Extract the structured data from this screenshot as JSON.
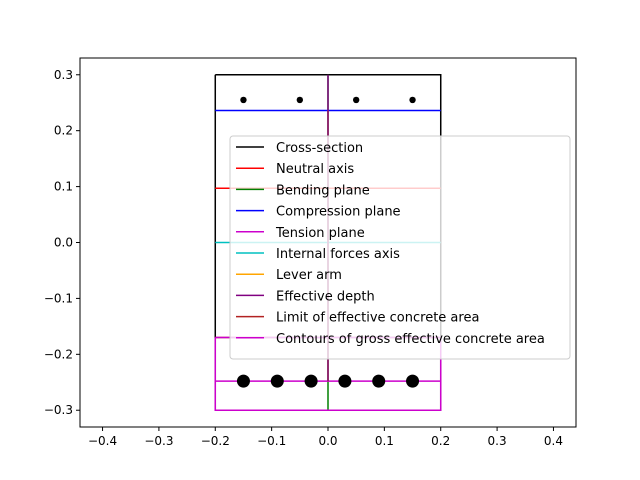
{
  "chart_data": {
    "type": "line",
    "title": "",
    "xlabel": "",
    "ylabel": "",
    "xlim": [
      -0.44,
      0.44
    ],
    "ylim": [
      -0.33,
      0.33
    ],
    "x_ticks": [
      -0.4,
      -0.3,
      -0.2,
      -0.1,
      0.0,
      0.1,
      0.2,
      0.3,
      0.4
    ],
    "y_ticks": [
      -0.3,
      -0.2,
      -0.1,
      0.0,
      0.1,
      0.2,
      0.3
    ],
    "x_tick_labels": [
      "−0.4",
      "−0.3",
      "−0.2",
      "−0.1",
      "0.0",
      "0.1",
      "0.2",
      "0.3",
      "0.4"
    ],
    "y_tick_labels": [
      "−0.3",
      "−0.2",
      "−0.1",
      "0.0",
      "0.1",
      "0.2",
      "0.3"
    ],
    "grid": false,
    "legend_position": "right",
    "series": [
      {
        "name": "Cross-section",
        "color": "#000000",
        "x": [
          -0.2,
          0.2,
          0.2,
          -0.2,
          -0.2
        ],
        "y": [
          0.3,
          0.3,
          -0.3,
          -0.3,
          0.3
        ]
      },
      {
        "name": "Neutral axis",
        "color": "#ff0000",
        "x": [
          -0.2,
          0.2
        ],
        "y": [
          0.097,
          0.097
        ]
      },
      {
        "name": "Bending plane",
        "color": "#008000",
        "x": [
          0.0,
          0.0
        ],
        "y": [
          0.3,
          -0.3
        ]
      },
      {
        "name": "Compression plane",
        "color": "#0000ff",
        "x": [
          -0.2,
          0.2
        ],
        "y": [
          0.236,
          0.236
        ]
      },
      {
        "name": "Tension plane",
        "color": "#cc00cc",
        "x": [
          -0.2,
          0.2
        ],
        "y": [
          -0.248,
          -0.248
        ]
      },
      {
        "name": "Internal forces axis",
        "color": "#00c0c0",
        "x": [
          -0.2,
          0.2
        ],
        "y": [
          0.0,
          0.0
        ]
      },
      {
        "name": "Lever arm",
        "color": "#ffa500",
        "x": [
          0.0,
          0.0
        ],
        "y": [
          0.236,
          -0.248
        ]
      },
      {
        "name": "Effective depth",
        "color": "#800080",
        "x": [
          0.0,
          0.0
        ],
        "y": [
          0.3,
          -0.248
        ]
      },
      {
        "name": "Limit of effective concrete area",
        "color": "#b22222",
        "x": [
          -0.2,
          0.2
        ],
        "y": [
          -0.17,
          -0.17
        ]
      },
      {
        "name": "Contours of gross effective concrete area",
        "color": "#cc00cc",
        "x": [
          -0.2,
          0.2,
          0.2,
          -0.2,
          -0.2
        ],
        "y": [
          -0.17,
          -0.17,
          -0.3,
          -0.3,
          -0.17
        ]
      }
    ],
    "points": [
      {
        "name": "top-bars",
        "color": "#000000",
        "size": "small",
        "x": [
          -0.15,
          -0.05,
          0.05,
          0.15
        ],
        "y": [
          0.255,
          0.255,
          0.255,
          0.255
        ]
      },
      {
        "name": "bottom-bars",
        "color": "#000000",
        "size": "large",
        "x": [
          -0.15,
          -0.09,
          -0.03,
          0.03,
          0.09,
          0.15
        ],
        "y": [
          -0.248,
          -0.248,
          -0.248,
          -0.248,
          -0.248,
          -0.248
        ]
      }
    ]
  }
}
